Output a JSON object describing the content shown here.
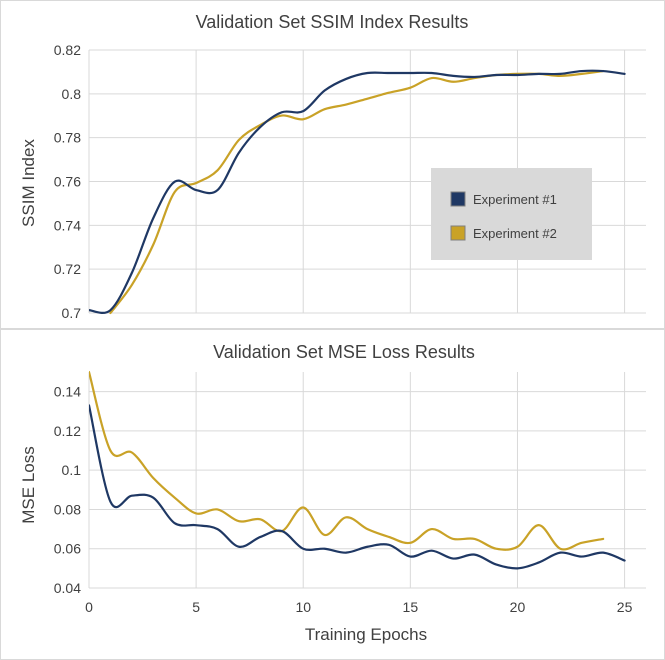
{
  "colors": {
    "exp1": "#1f3864",
    "exp2": "#c9a227",
    "grid": "#d9d9d9",
    "text": "#404040",
    "legend_bg": "#d9d9d9"
  },
  "chart_data": [
    {
      "type": "line",
      "title": "Validation Set SSIM Index Results",
      "xlabel": "",
      "ylabel": "SSIM Index",
      "ylim": [
        0.7,
        0.82
      ],
      "xlim": [
        0,
        26
      ],
      "yticks": [
        "0.7",
        "0.72",
        "0.74",
        "0.76",
        "0.78",
        "0.8",
        "0.82"
      ],
      "ytick_values": [
        0.7,
        0.72,
        0.74,
        0.76,
        0.78,
        0.8,
        0.82
      ],
      "xgrid": [
        5,
        10,
        15,
        20,
        25
      ],
      "grid": true,
      "legend_position": "right-center",
      "legend": [
        "Experiment #1",
        "Experiment #2"
      ],
      "series": [
        {
          "name": "Experiment #1",
          "x": [
            0,
            1,
            2,
            3,
            4,
            5,
            6,
            7,
            8,
            9,
            10,
            11,
            12,
            13,
            14,
            15,
            16,
            17,
            18,
            19,
            20,
            21,
            22,
            23,
            24,
            25
          ],
          "values": [
            0.7013,
            0.7013,
            0.7183,
            0.7433,
            0.7599,
            0.7561,
            0.7561,
            0.7732,
            0.7849,
            0.7916,
            0.7921,
            0.8015,
            0.8068,
            0.8095,
            0.8095,
            0.8095,
            0.8095,
            0.8082,
            0.8077,
            0.8086,
            0.8086,
            0.8091,
            0.8091,
            0.8104,
            0.8104,
            0.8091
          ]
        },
        {
          "name": "Experiment #2",
          "x": [
            1,
            2,
            3,
            4,
            5,
            6,
            7,
            8,
            9,
            10,
            11,
            12,
            13,
            14,
            15,
            16,
            17,
            18,
            19,
            20,
            21,
            22,
            23,
            24
          ],
          "values": [
            0.7,
            0.7128,
            0.7312,
            0.7552,
            0.7593,
            0.7651,
            0.779,
            0.7858,
            0.7901,
            0.7884,
            0.793,
            0.7951,
            0.7978,
            0.8005,
            0.8028,
            0.8072,
            0.8055,
            0.8072,
            0.8086,
            0.8091,
            0.8091,
            0.8082,
            0.8091,
            0.8104
          ]
        }
      ]
    },
    {
      "type": "line",
      "title": "Validation Set MSE Loss Results",
      "xlabel": "Training Epochs",
      "ylabel": "MSE Loss",
      "ylim": [
        0.04,
        0.15
      ],
      "xlim": [
        0,
        26
      ],
      "yticks": [
        "0.04",
        "0.06",
        "0.08",
        "0.1",
        "0.12",
        "0.14"
      ],
      "ytick_values": [
        0.04,
        0.06,
        0.08,
        0.1,
        0.12,
        0.14
      ],
      "xticks": [
        "0",
        "5",
        "10",
        "15",
        "20",
        "25"
      ],
      "xtick_values": [
        0,
        5,
        10,
        15,
        20,
        25
      ],
      "grid": true,
      "series": [
        {
          "name": "Experiment #1",
          "x": [
            0,
            1,
            2,
            3,
            4,
            5,
            6,
            7,
            8,
            9,
            10,
            11,
            12,
            13,
            14,
            15,
            16,
            17,
            18,
            19,
            20,
            21,
            22,
            23,
            24,
            25
          ],
          "values": [
            0.133,
            0.084,
            0.087,
            0.086,
            0.073,
            0.072,
            0.07,
            0.061,
            0.066,
            0.069,
            0.06,
            0.06,
            0.058,
            0.061,
            0.062,
            0.056,
            0.059,
            0.055,
            0.057,
            0.052,
            0.05,
            0.053,
            0.058,
            0.056,
            0.058,
            0.054
          ]
        },
        {
          "name": "Experiment #2",
          "x": [
            0,
            1,
            2,
            3,
            4,
            5,
            6,
            7,
            8,
            9,
            10,
            11,
            12,
            13,
            14,
            15,
            16,
            17,
            18,
            19,
            20,
            21,
            22,
            23,
            24
          ],
          "values": [
            0.15,
            0.11,
            0.109,
            0.096,
            0.086,
            0.078,
            0.08,
            0.074,
            0.075,
            0.069,
            0.081,
            0.067,
            0.076,
            0.07,
            0.066,
            0.063,
            0.07,
            0.065,
            0.065,
            0.06,
            0.061,
            0.072,
            0.06,
            0.063,
            0.065
          ]
        }
      ]
    }
  ]
}
